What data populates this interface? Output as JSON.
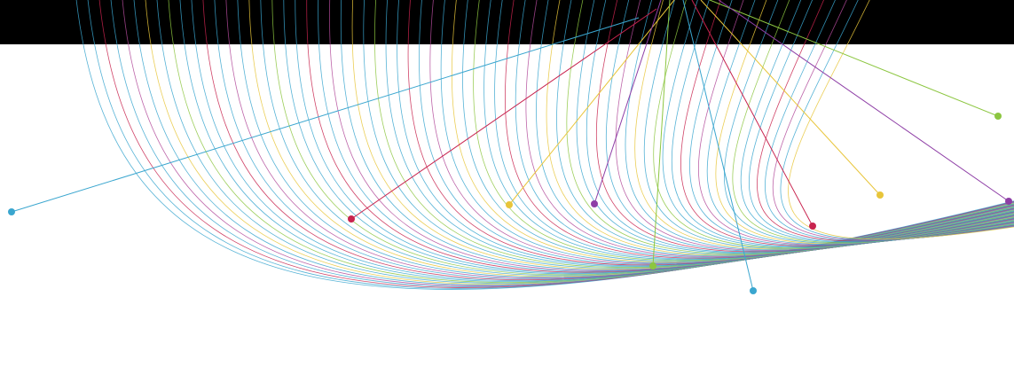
{
  "artwork": {
    "background_color": "#ffffff",
    "band_color": "#000000",
    "palette": {
      "blue": "#3aa6cf",
      "crimson": "#c8234e",
      "magenta": "#b24a9a",
      "yellow": "#e8c53a",
      "green": "#8cc640",
      "purple": "#8e3ea6"
    }
  }
}
